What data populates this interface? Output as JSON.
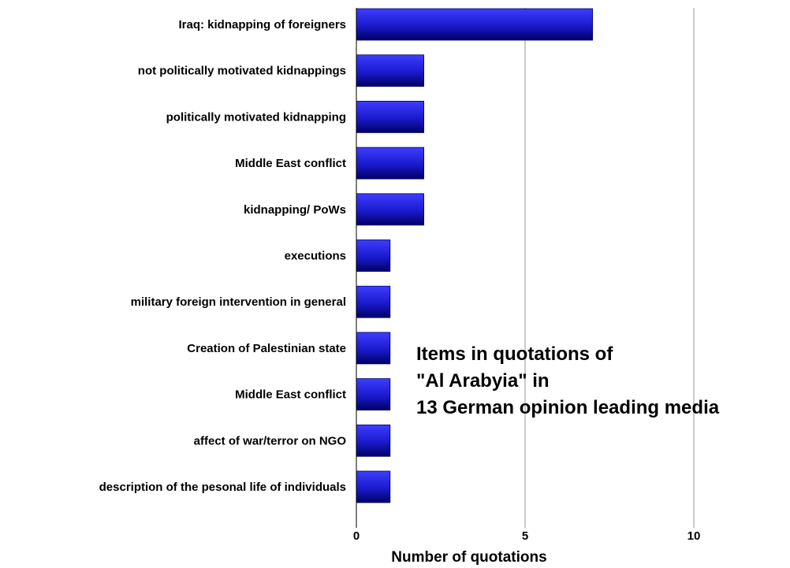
{
  "chart_data": {
    "type": "bar",
    "orientation": "horizontal",
    "categories": [
      "Iraq: kidnapping of foreigners",
      "not politically motivated kidnappings",
      "politically motivated kidnapping",
      "Middle East conflict",
      "kidnapping/ PoWs",
      "executions",
      "military foreign intervention in general",
      "Creation of Palestinian state",
      "Middle East conflict",
      "affect of war/terror on NGO",
      "description of the pesonal life of individuals"
    ],
    "values": [
      7,
      2,
      2,
      2,
      2,
      1,
      1,
      1,
      1,
      1,
      1
    ],
    "xlabel": "Number of quotations",
    "ylabel": "",
    "xlim": [
      0,
      12
    ],
    "xticks": [
      0,
      5,
      10
    ],
    "xtick_labels": [
      "0",
      "5",
      "10"
    ],
    "grid": "vertical",
    "annotation": [
      "Items in quotations of",
      "\"Al Arabyia\" in",
      "13 German opinion leading media"
    ],
    "colors": {
      "bar": "#1a1acc",
      "bar_dark": "#000066",
      "bar_light": "#3d3dff",
      "grid": "#a6a6a6",
      "axis": "#000000"
    }
  }
}
